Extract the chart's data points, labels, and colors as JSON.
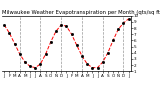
{
  "title": "Milwaukee Weather Evapotranspiration per Month (qts/sq ft)",
  "months": [
    "J",
    "F",
    "M",
    "A",
    "M",
    "J",
    "J",
    "A",
    "S",
    "O",
    "N",
    "D",
    "J",
    "F",
    "M",
    "A",
    "M",
    "J",
    "J",
    "A",
    "S",
    "O",
    "N",
    "D",
    "J"
  ],
  "x_values": [
    1,
    2,
    3,
    4,
    5,
    6,
    7,
    8,
    9,
    10,
    11,
    12,
    13,
    14,
    15,
    16,
    17,
    18,
    19,
    20,
    21,
    22,
    23,
    24,
    25
  ],
  "y_values": [
    8.5,
    7.2,
    5.5,
    3.8,
    2.5,
    1.8,
    1.6,
    2.2,
    3.8,
    5.8,
    7.5,
    8.5,
    8.3,
    7.0,
    5.2,
    3.5,
    2.2,
    1.6,
    1.6,
    2.5,
    4.0,
    6.0,
    7.8,
    8.8,
    9.5
  ],
  "ylim": [
    1.0,
    10.0
  ],
  "yticks": [
    1,
    2,
    3,
    4,
    5,
    6,
    7,
    8,
    9,
    10
  ],
  "ytick_labels": [
    "1",
    "2",
    "3",
    "4",
    "5",
    "6",
    "7",
    "8",
    "9",
    "10"
  ],
  "vline_positions": [
    4,
    8,
    12,
    16,
    20,
    24
  ],
  "line_color": "#ff0000",
  "marker_color": "#000000",
  "grid_color": "#999999",
  "bg_color": "#ffffff",
  "title_fontsize": 3.8,
  "tick_fontsize": 3.0
}
